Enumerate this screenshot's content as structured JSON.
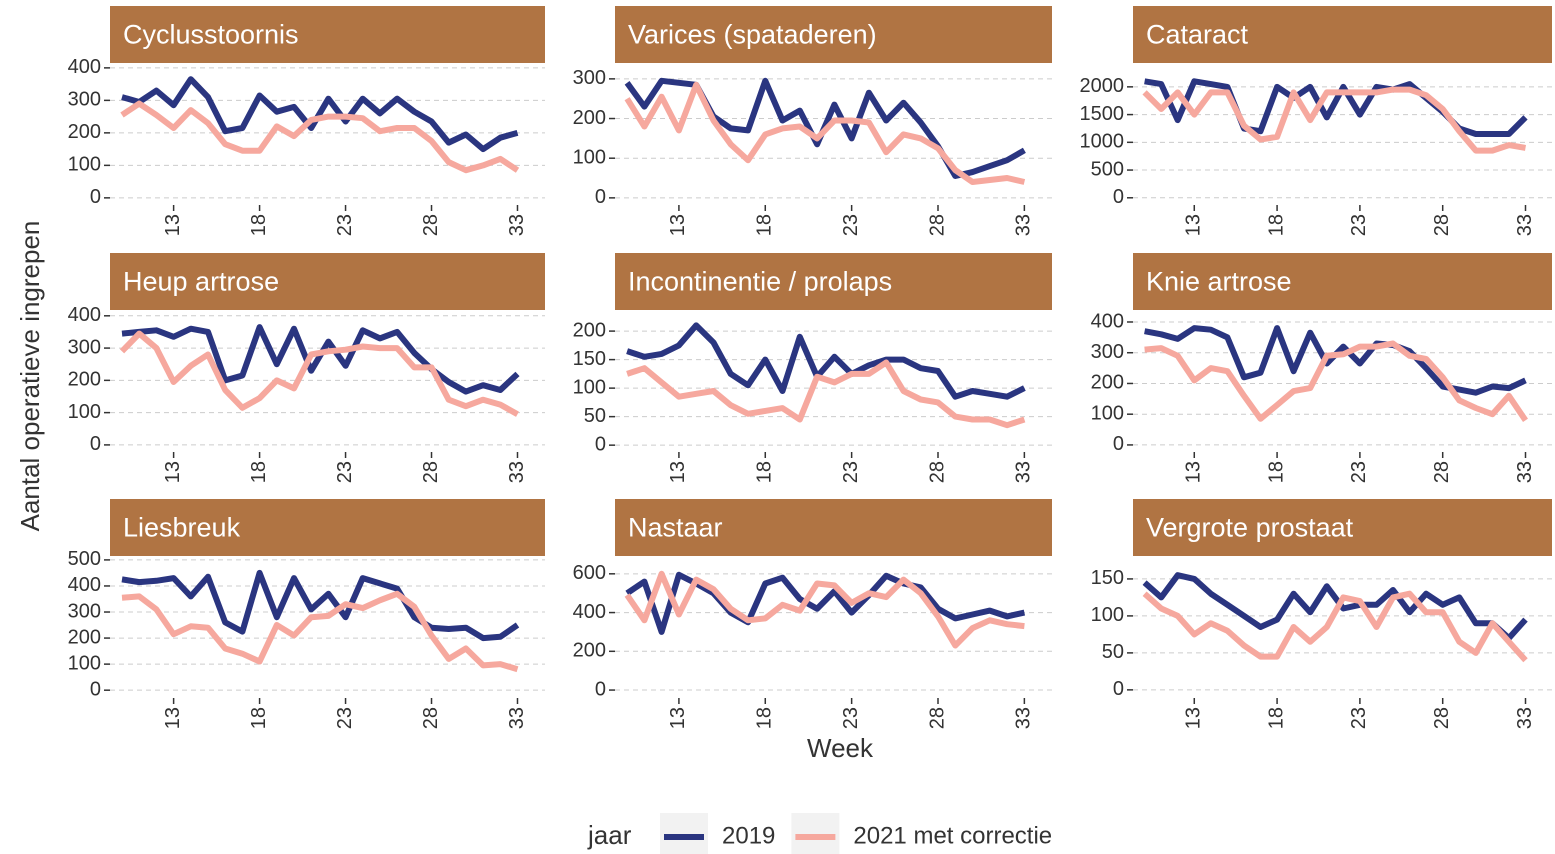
{
  "chart_data": {
    "type": "line",
    "x_label": "Week",
    "y_label": "Aantal operatieve ingrepen",
    "legend_title": "jaar",
    "series": [
      {
        "name": "2019",
        "color": "#2a3580"
      },
      {
        "name": "2021 met correctie",
        "color": "#f6a89e"
      }
    ],
    "x": [
      10,
      11,
      12,
      13,
      14,
      15,
      16,
      17,
      18,
      19,
      20,
      21,
      22,
      23,
      24,
      25,
      26,
      27,
      28,
      29,
      30,
      31,
      32,
      33
    ],
    "xlim": [
      9.3,
      34.6
    ],
    "xticks": [
      13,
      18,
      23,
      28,
      33
    ],
    "grid": true,
    "panels": [
      {
        "title": "Cyclusstoornis",
        "ylim": [
          -22,
          415
        ],
        "yticks": [
          0,
          100,
          200,
          300,
          400
        ],
        "values": [
          [
            310,
            295,
            330,
            285,
            365,
            310,
            205,
            215,
            315,
            265,
            280,
            215,
            305,
            235,
            305,
            260,
            305,
            265,
            235,
            170,
            195,
            150,
            185,
            200
          ],
          [
            255,
            290,
            255,
            215,
            270,
            230,
            165,
            145,
            145,
            220,
            190,
            240,
            250,
            250,
            245,
            205,
            215,
            215,
            175,
            110,
            85,
            100,
            120,
            85
          ]
        ]
      },
      {
        "title": "Varices (spataderen)",
        "ylim": [
          -18,
          340
        ],
        "yticks": [
          0,
          100,
          200,
          300
        ],
        "values": [
          [
            290,
            230,
            295,
            290,
            285,
            205,
            175,
            170,
            295,
            195,
            220,
            135,
            235,
            150,
            265,
            195,
            240,
            190,
            130,
            55,
            65,
            80,
            95,
            120
          ],
          [
            250,
            180,
            255,
            170,
            285,
            195,
            135,
            95,
            160,
            175,
            180,
            150,
            195,
            195,
            190,
            115,
            160,
            150,
            125,
            70,
            40,
            45,
            50,
            40
          ]
        ]
      },
      {
        "title": "Cataract",
        "ylim": [
          -130,
          2430
        ],
        "yticks": [
          0,
          500,
          1000,
          1500,
          2000
        ],
        "values": [
          [
            2100,
            2050,
            1400,
            2100,
            2050,
            2000,
            1250,
            1200,
            2000,
            1800,
            2000,
            1450,
            2000,
            1500,
            2000,
            1950,
            2050,
            1800,
            1550,
            1250,
            1150,
            1150,
            1150,
            1450
          ],
          [
            1900,
            1600,
            1900,
            1500,
            1900,
            1900,
            1300,
            1050,
            1100,
            1900,
            1400,
            1900,
            1900,
            1900,
            1900,
            1950,
            1950,
            1850,
            1600,
            1200,
            850,
            850,
            950,
            900
          ]
        ]
      },
      {
        "title": "Heup artrose",
        "ylim": [
          -22,
          418
        ],
        "yticks": [
          0,
          100,
          200,
          300,
          400
        ],
        "values": [
          [
            345,
            350,
            355,
            335,
            360,
            350,
            200,
            215,
            365,
            250,
            360,
            230,
            320,
            245,
            355,
            330,
            350,
            285,
            235,
            195,
            165,
            185,
            170,
            220
          ],
          [
            290,
            345,
            300,
            195,
            245,
            280,
            170,
            115,
            145,
            200,
            175,
            280,
            290,
            295,
            305,
            300,
            300,
            240,
            240,
            140,
            120,
            140,
            125,
            95
          ]
        ]
      },
      {
        "title": "Incontinentie / prolaps",
        "ylim": [
          -12,
          237
        ],
        "yticks": [
          0,
          50,
          100,
          150,
          200
        ],
        "values": [
          [
            165,
            155,
            160,
            175,
            210,
            180,
            125,
            105,
            150,
            95,
            190,
            120,
            155,
            125,
            140,
            150,
            150,
            135,
            130,
            85,
            95,
            90,
            85,
            100
          ],
          [
            125,
            135,
            110,
            85,
            90,
            95,
            70,
            55,
            60,
            65,
            45,
            120,
            110,
            125,
            125,
            145,
            95,
            80,
            75,
            50,
            45,
            45,
            35,
            45
          ]
        ]
      },
      {
        "title": "Knie artrose",
        "ylim": [
          -23,
          439
        ],
        "yticks": [
          0,
          100,
          200,
          300,
          400
        ],
        "values": [
          [
            370,
            360,
            345,
            380,
            375,
            350,
            220,
            235,
            380,
            240,
            365,
            265,
            320,
            265,
            330,
            325,
            305,
            250,
            190,
            180,
            170,
            190,
            185,
            210
          ],
          [
            310,
            315,
            290,
            210,
            250,
            240,
            160,
            85,
            130,
            175,
            185,
            290,
            295,
            320,
            320,
            330,
            290,
            280,
            220,
            145,
            120,
            100,
            160,
            80
          ]
        ]
      },
      {
        "title": "Liesbreuk",
        "ylim": [
          -30,
          515
        ],
        "yticks": [
          0,
          100,
          200,
          300,
          400,
          500
        ],
        "values": [
          [
            425,
            415,
            420,
            430,
            360,
            435,
            260,
            225,
            450,
            280,
            430,
            310,
            370,
            280,
            430,
            410,
            390,
            280,
            240,
            235,
            240,
            200,
            205,
            250
          ],
          [
            355,
            360,
            310,
            215,
            245,
            240,
            160,
            140,
            110,
            250,
            210,
            280,
            285,
            330,
            315,
            345,
            370,
            320,
            210,
            120,
            160,
            95,
            100,
            80
          ]
        ]
      },
      {
        "title": "Nastaar",
        "ylim": [
          -41,
          692
        ],
        "yticks": [
          0,
          200,
          400,
          600
        ],
        "values": [
          [
            500,
            560,
            300,
            595,
            550,
            500,
            400,
            350,
            550,
            580,
            470,
            420,
            510,
            400,
            490,
            590,
            550,
            530,
            420,
            370,
            390,
            410,
            380,
            400
          ],
          [
            490,
            360,
            600,
            390,
            570,
            520,
            420,
            360,
            370,
            440,
            410,
            550,
            540,
            450,
            500,
            480,
            570,
            500,
            380,
            230,
            320,
            360,
            340,
            330
          ]
        ]
      },
      {
        "title": "Vergrote prostaat",
        "ylim": [
          -11,
          181
        ],
        "yticks": [
          0,
          50,
          100,
          150
        ],
        "values": [
          [
            145,
            125,
            155,
            150,
            130,
            115,
            100,
            85,
            95,
            130,
            105,
            140,
            110,
            115,
            115,
            135,
            105,
            130,
            115,
            125,
            90,
            90,
            70,
            95
          ],
          [
            130,
            110,
            100,
            75,
            90,
            80,
            60,
            45,
            45,
            85,
            65,
            85,
            125,
            120,
            85,
            125,
            130,
            105,
            105,
            65,
            50,
            90,
            65,
            40
          ]
        ]
      }
    ]
  }
}
